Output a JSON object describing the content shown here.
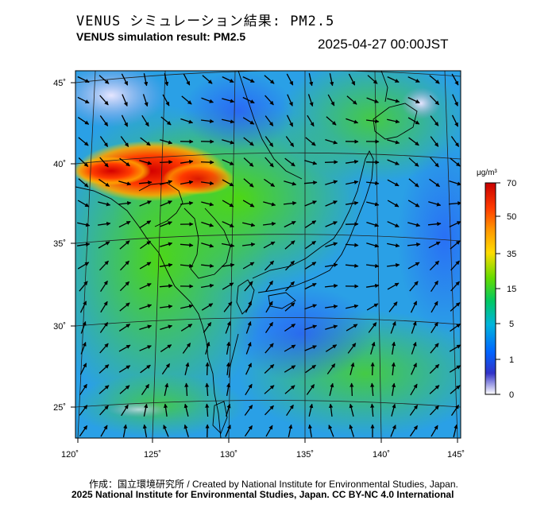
{
  "header": {
    "title_jp": "VENUS シミュレーション結果: PM2.5",
    "title_en": "VENUS simulation result: PM2.5",
    "timestamp": "2025-04-27 00:00JST"
  },
  "axes": {
    "lon_labels": [
      "120˚",
      "125˚",
      "130˚",
      "135˚",
      "140˚",
      "145˚"
    ],
    "lat_labels": [
      "45˚",
      "40˚",
      "35˚",
      "30˚",
      "25˚"
    ]
  },
  "colorbar": {
    "unit": "μg/m³",
    "labels": [
      "70",
      "50",
      "35",
      "15",
      "5",
      "1",
      "0"
    ],
    "stops": [
      "#c80000",
      "#ff3c00",
      "#ff9600",
      "#ffdc00",
      "#64dc00",
      "#00c864",
      "#00b4dc",
      "#0064ff",
      "#3232c8",
      "#ffffff"
    ]
  },
  "footer": {
    "credit_line": "作成：国立環境研究所 / Created by National Institute for Environmental Studies, Japan.",
    "license_line": "2025 National Institute for Environmental Studies, Japan. CC BY-NC 4.0 International"
  }
}
